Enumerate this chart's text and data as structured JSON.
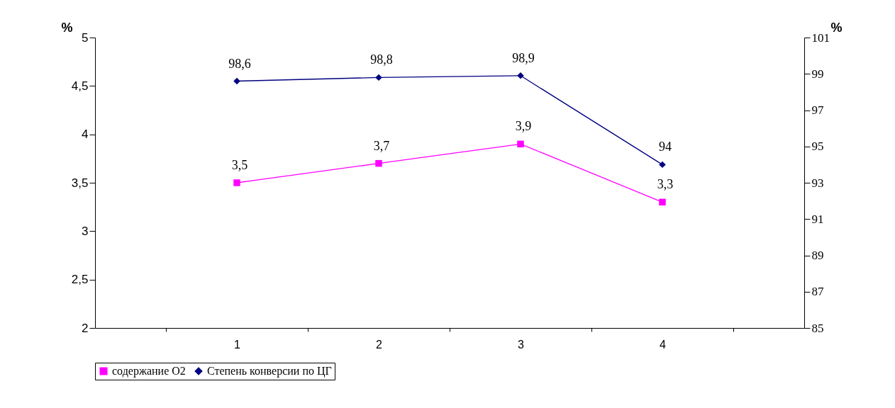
{
  "chart_data": {
    "type": "line",
    "categories": [
      "1",
      "2",
      "3",
      "4"
    ],
    "ylabel": "%",
    "y2label": "%",
    "ylim": [
      2,
      5
    ],
    "yticks": [
      2,
      {
        "value": 2.5,
        "label": "2,5"
      },
      3,
      {
        "value": 3.5,
        "label": "3,5"
      },
      4,
      {
        "value": 4.5,
        "label": "4,5"
      },
      5
    ],
    "y2lim": [
      85,
      101
    ],
    "y2ticks": [
      85,
      87,
      89,
      91,
      93,
      95,
      97,
      99,
      101
    ],
    "series": [
      {
        "name": "содержание O2",
        "color": "#ff00ff",
        "marker": "square",
        "values": [
          3.5,
          3.7,
          3.9,
          3.3
        ],
        "value_labels": [
          "3,5",
          "3,7",
          "3,9",
          "3,3"
        ]
      },
      {
        "name": "Степень конверсии по ЦГ",
        "color": "#000080",
        "marker": "diamond",
        "axis": "y2",
        "values": [
          98.6,
          98.8,
          98.9,
          94
        ],
        "value_labels": [
          "98,6",
          "98,8",
          "98,9",
          "94"
        ]
      }
    ],
    "legend": "bottom",
    "grid": false,
    "line_style": "solid"
  }
}
